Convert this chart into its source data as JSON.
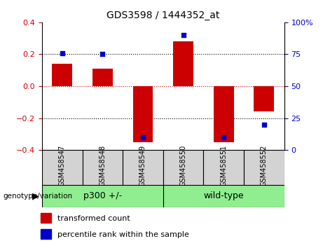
{
  "title": "GDS3598 / 1444352_at",
  "samples": [
    "GSM458547",
    "GSM458548",
    "GSM458549",
    "GSM458550",
    "GSM458551",
    "GSM458552"
  ],
  "red_bars": [
    0.14,
    0.11,
    -0.35,
    0.28,
    -0.35,
    -0.16
  ],
  "blue_squares_pct": [
    76,
    75,
    10,
    90,
    10,
    20
  ],
  "ylim_left": [
    -0.4,
    0.4
  ],
  "ylim_right": [
    0,
    100
  ],
  "yticks_left": [
    -0.4,
    -0.2,
    0,
    0.2,
    0.4
  ],
  "yticks_right": [
    0,
    25,
    50,
    75,
    100
  ],
  "ytick_labels_right": [
    "0",
    "25",
    "50",
    "75",
    "100%"
  ],
  "hlines_dotted": [
    -0.2,
    0.2
  ],
  "zero_line": 0,
  "group_labels": [
    "p300 +/-",
    "wild-type"
  ],
  "group_sizes": [
    3,
    3
  ],
  "group_color": "#90EE90",
  "group_label_text": "genotype/variation",
  "bar_color": "#CC0000",
  "square_color": "#0000CC",
  "bar_width": 0.5,
  "label_bg": "#D3D3D3",
  "legend_items": [
    "transformed count",
    "percentile rank within the sample"
  ]
}
